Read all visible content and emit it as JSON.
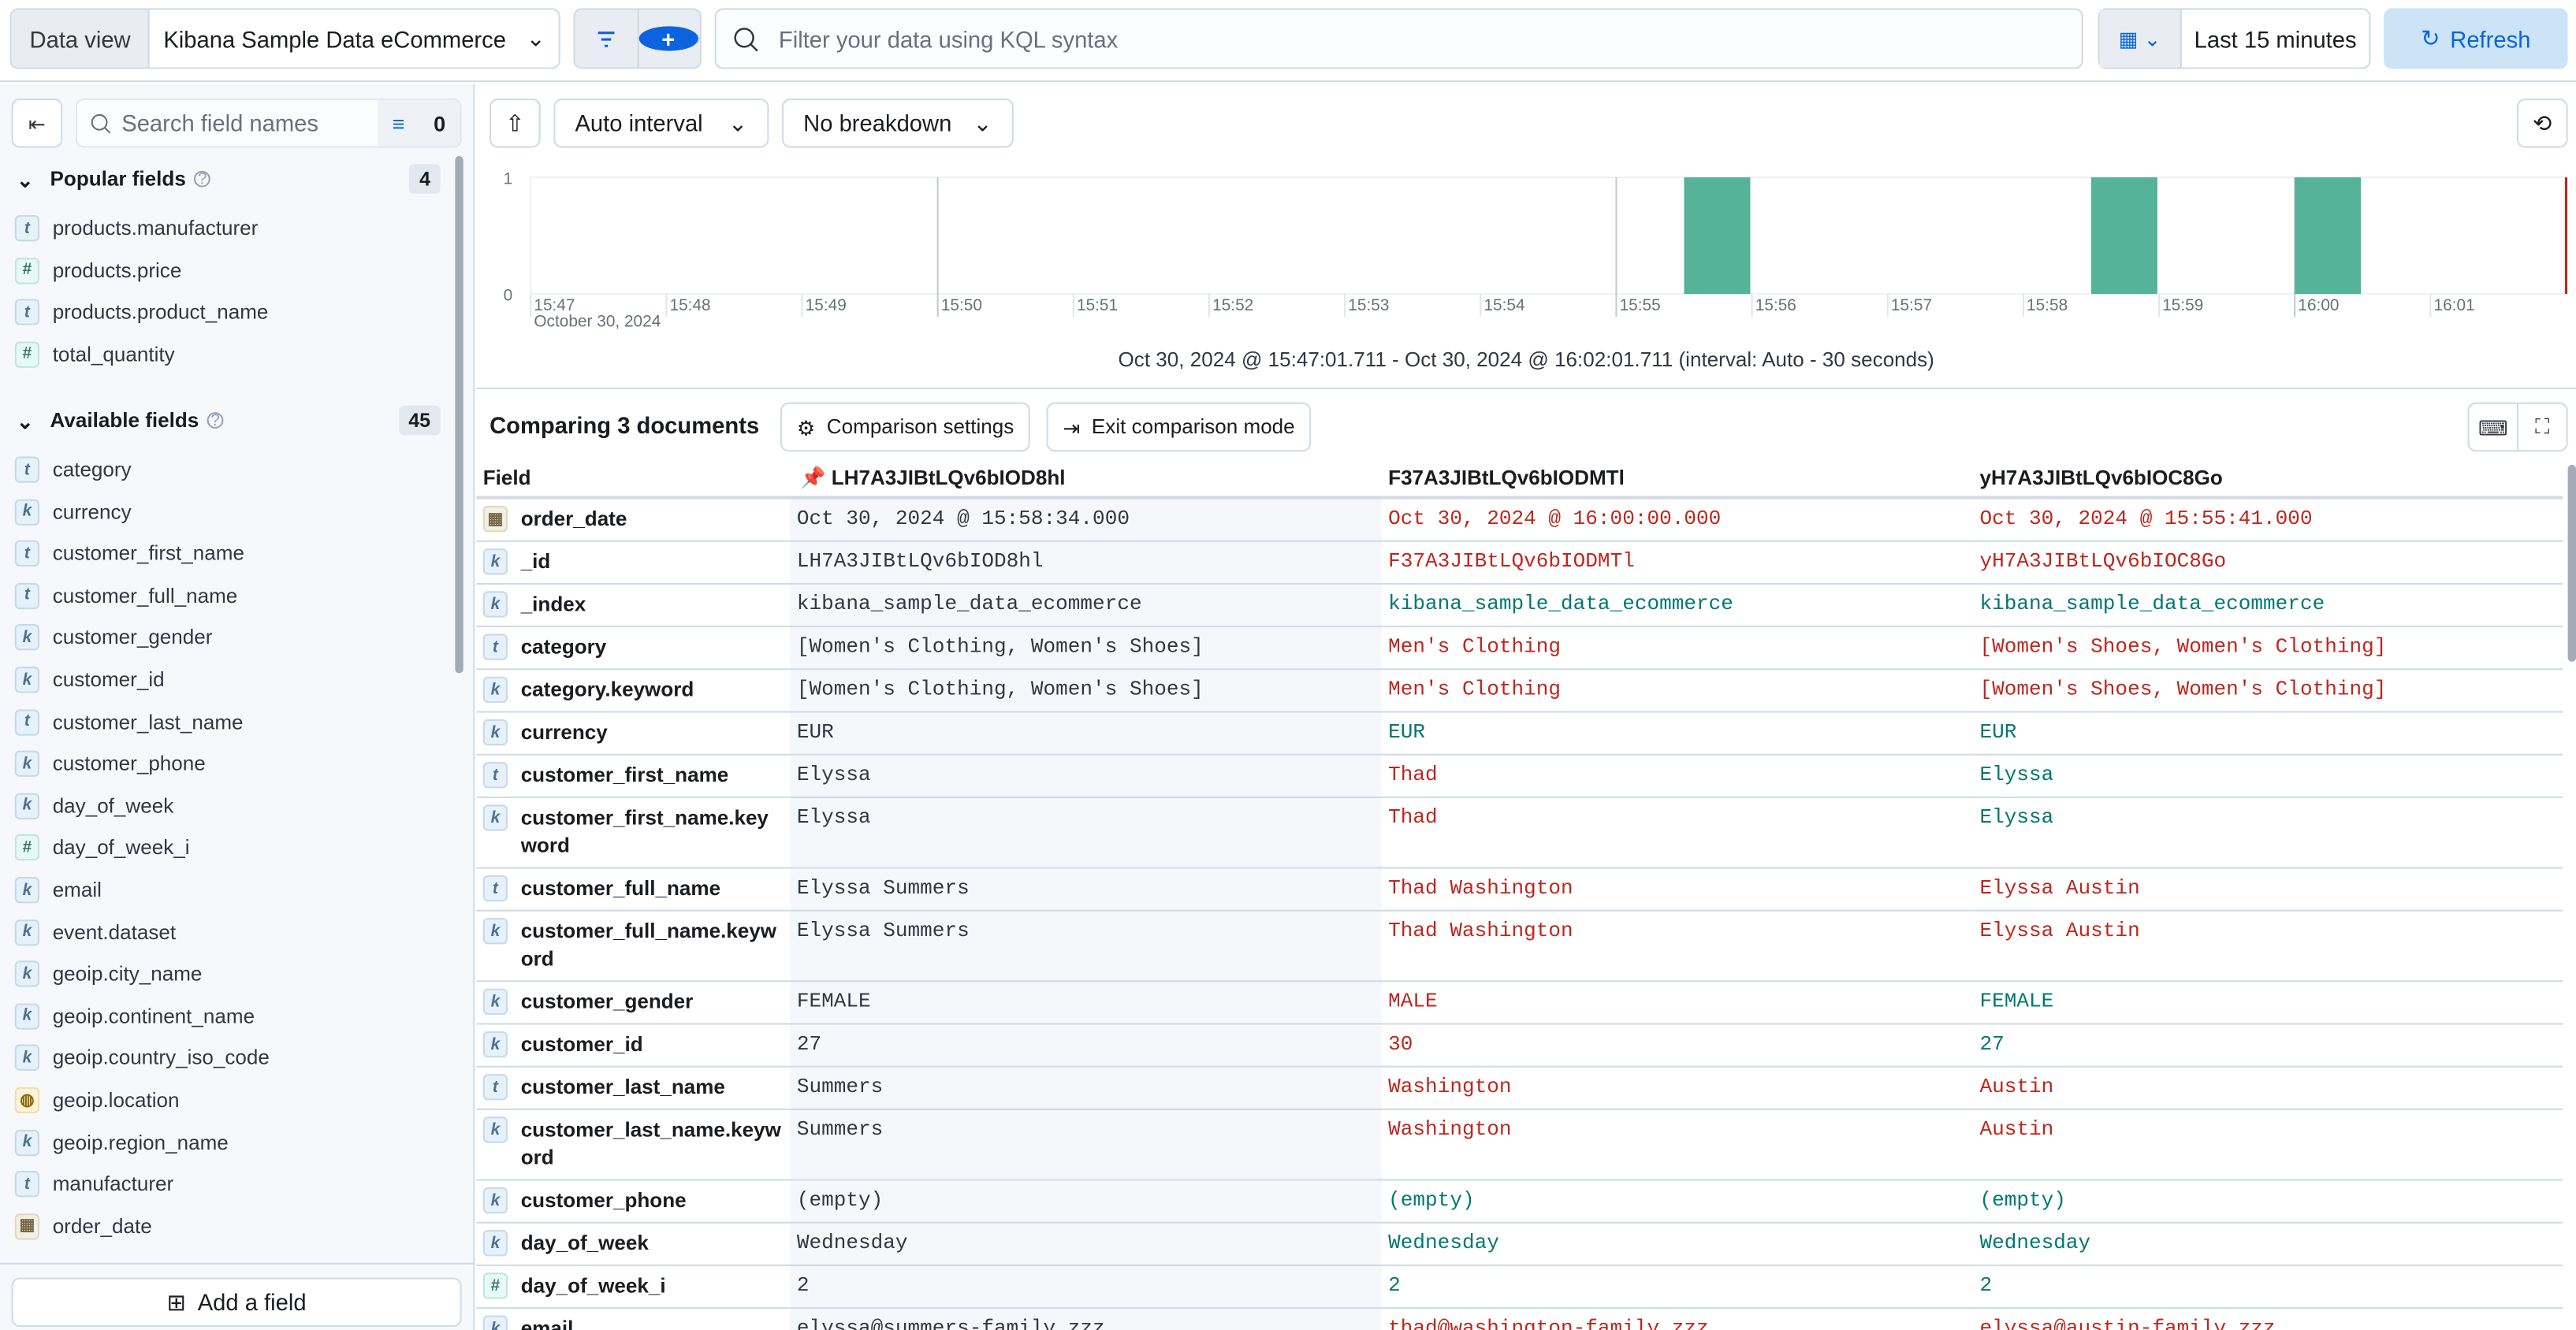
{
  "topbar": {
    "data_view_label": "Data view",
    "data_view_value": "Kibana Sample Data eCommerce",
    "query_placeholder": "Filter your data using KQL syntax",
    "date_range": "Last 15 minutes",
    "refresh_label": "Refresh",
    "accent": "#0b64dd"
  },
  "sidebar": {
    "search_placeholder": "Search field names",
    "filter_count": "0",
    "popular": {
      "title": "Popular fields",
      "count": "4",
      "items": [
        {
          "type": "t",
          "name": "products.manufacturer"
        },
        {
          "type": "#",
          "name": "products.price"
        },
        {
          "type": "t",
          "name": "products.product_name"
        },
        {
          "type": "#",
          "name": "total_quantity"
        }
      ]
    },
    "available": {
      "title": "Available fields",
      "count": "45",
      "items": [
        {
          "type": "t",
          "name": "category"
        },
        {
          "type": "k",
          "name": "currency"
        },
        {
          "type": "t",
          "name": "customer_first_name"
        },
        {
          "type": "t",
          "name": "customer_full_name"
        },
        {
          "type": "k",
          "name": "customer_gender"
        },
        {
          "type": "k",
          "name": "customer_id"
        },
        {
          "type": "t",
          "name": "customer_last_name"
        },
        {
          "type": "k",
          "name": "customer_phone"
        },
        {
          "type": "k",
          "name": "day_of_week"
        },
        {
          "type": "#",
          "name": "day_of_week_i"
        },
        {
          "type": "k",
          "name": "email"
        },
        {
          "type": "k",
          "name": "event.dataset"
        },
        {
          "type": "k",
          "name": "geoip.city_name"
        },
        {
          "type": "k",
          "name": "geoip.continent_name"
        },
        {
          "type": "k",
          "name": "geoip.country_iso_code"
        },
        {
          "type": "geo",
          "name": "geoip.location"
        },
        {
          "type": "k",
          "name": "geoip.region_name"
        },
        {
          "type": "t",
          "name": "manufacturer"
        },
        {
          "type": "date",
          "name": "order_date"
        }
      ]
    },
    "add_field_label": "Add a field"
  },
  "toolbar": {
    "interval": "Auto interval",
    "breakdown": "No breakdown"
  },
  "chart_data": {
    "type": "bar",
    "x_ticks": [
      "15:47",
      "15:48",
      "15:49",
      "15:50",
      "15:51",
      "15:52",
      "15:53",
      "15:54",
      "15:55",
      "15:56",
      "15:57",
      "15:58",
      "15:59",
      "16:00",
      "16:01"
    ],
    "x_sublabel": "October 30, 2024",
    "y_ticks": [
      "0",
      "1"
    ],
    "ylim": [
      0,
      1
    ],
    "xlim": [
      "15:47:01.711",
      "16:02:01.711"
    ],
    "bars": [
      {
        "x": "15:55:30",
        "value": 1
      },
      {
        "x": "15:58:30",
        "value": 1
      },
      {
        "x": "16:00:00",
        "value": 1
      }
    ],
    "bar_color": "#54b399",
    "caption": "Oct 30, 2024 @ 15:47:01.711 - Oct 30, 2024 @ 16:02:01.711 (interval: Auto - 30 seconds)"
  },
  "comparison": {
    "title": "Comparing 3 documents",
    "settings_label": "Comparison settings",
    "exit_label": "Exit comparison mode",
    "field_header": "Field",
    "documents": [
      "LH7A3JIBtLQv6bIOD8hl",
      "F37A3JIBtLQv6bIODMTl",
      "yH7A3JIBtLQv6bIOC8Go"
    ],
    "diff_colors": {
      "different": "#bd271e",
      "same": "#007871"
    },
    "rows": [
      {
        "type": "date",
        "field": "order_date",
        "values": [
          "Oct 30, 2024 @ 15:58:34.000",
          "Oct 30, 2024 @ 16:00:00.000",
          "Oct 30, 2024 @ 15:55:41.000"
        ],
        "status": [
          "red",
          "red"
        ]
      },
      {
        "type": "k",
        "field": "_id",
        "values": [
          "LH7A3JIBtLQv6bIOD8hl",
          "F37A3JIBtLQv6bIODMTl",
          "yH7A3JIBtLQv6bIOC8Go"
        ],
        "status": [
          "red",
          "red"
        ]
      },
      {
        "type": "k",
        "field": "_index",
        "values": [
          "kibana_sample_data_ecommerce",
          "kibana_sample_data_ecommerce",
          "kibana_sample_data_ecommerce"
        ],
        "status": [
          "green",
          "green"
        ]
      },
      {
        "type": "t",
        "field": "category",
        "values": [
          "[Women's Clothing, Women's Shoes]",
          "Men's Clothing",
          "[Women's Shoes, Women's Clothing]"
        ],
        "status": [
          "red",
          "red"
        ]
      },
      {
        "type": "k",
        "field": "category.keyword",
        "values": [
          "[Women's Clothing, Women's Shoes]",
          "Men's Clothing",
          "[Women's Shoes, Women's Clothing]"
        ],
        "status": [
          "red",
          "red"
        ]
      },
      {
        "type": "k",
        "field": "currency",
        "values": [
          "EUR",
          "EUR",
          "EUR"
        ],
        "status": [
          "green",
          "green"
        ]
      },
      {
        "type": "t",
        "field": "customer_first_name",
        "values": [
          "Elyssa",
          "Thad",
          "Elyssa"
        ],
        "status": [
          "red",
          "green"
        ]
      },
      {
        "type": "k",
        "field": "customer_first_name.keyword",
        "values": [
          "Elyssa",
          "Thad",
          "Elyssa"
        ],
        "status": [
          "red",
          "green"
        ]
      },
      {
        "type": "t",
        "field": "customer_full_name",
        "values": [
          "Elyssa Summers",
          "Thad Washington",
          "Elyssa Austin"
        ],
        "status": [
          "red",
          "red"
        ]
      },
      {
        "type": "k",
        "field": "customer_full_name.keyword",
        "values": [
          "Elyssa Summers",
          "Thad Washington",
          "Elyssa Austin"
        ],
        "status": [
          "red",
          "red"
        ]
      },
      {
        "type": "k",
        "field": "customer_gender",
        "values": [
          "FEMALE",
          "MALE",
          "FEMALE"
        ],
        "status": [
          "red",
          "green"
        ]
      },
      {
        "type": "k",
        "field": "customer_id",
        "values": [
          "27",
          "30",
          "27"
        ],
        "status": [
          "red",
          "green"
        ]
      },
      {
        "type": "t",
        "field": "customer_last_name",
        "values": [
          "Summers",
          "Washington",
          "Austin"
        ],
        "status": [
          "red",
          "red"
        ]
      },
      {
        "type": "k",
        "field": "customer_last_name.keyword",
        "values": [
          "Summers",
          "Washington",
          "Austin"
        ],
        "status": [
          "red",
          "red"
        ]
      },
      {
        "type": "k",
        "field": "customer_phone",
        "values": [
          "(empty)",
          "(empty)",
          "(empty)"
        ],
        "status": [
          "green",
          "green"
        ]
      },
      {
        "type": "k",
        "field": "day_of_week",
        "values": [
          "Wednesday",
          "Wednesday",
          "Wednesday"
        ],
        "status": [
          "green",
          "green"
        ]
      },
      {
        "type": "#",
        "field": "day_of_week_i",
        "values": [
          "2",
          "2",
          "2"
        ],
        "status": [
          "green",
          "green"
        ]
      },
      {
        "type": "k",
        "field": "email",
        "values": [
          "elyssa@summers-family.zzz",
          "thad@washington-family.zzz",
          "elyssa@austin-family.zzz"
        ],
        "status": [
          "red",
          "red"
        ]
      }
    ]
  }
}
